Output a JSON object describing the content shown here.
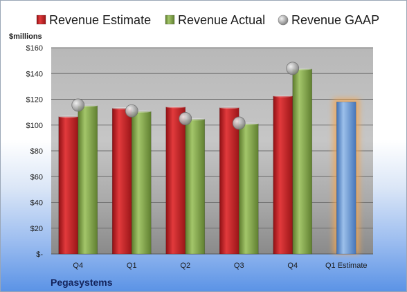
{
  "chart_data": {
    "type": "bar",
    "title": "",
    "company": "Pegasystems",
    "ylabel": "$millions",
    "ylim": [
      0,
      160
    ],
    "y_ticks": [
      0,
      20,
      40,
      60,
      80,
      100,
      120,
      140,
      160
    ],
    "y_tick_labels": [
      "$-",
      "$20",
      "$40",
      "$60",
      "$80",
      "$100",
      "$120",
      "$140",
      "$160"
    ],
    "grid": true,
    "legend_position": "top",
    "categories": [
      "Q4",
      "Q1",
      "Q2",
      "Q3",
      "Q4",
      "Q1 Estimate"
    ],
    "series": [
      {
        "name": "Revenue Estimate",
        "type": "bar",
        "color": "#c8262a",
        "values": [
          106.5,
          113,
          114,
          113.5,
          122.5,
          null
        ]
      },
      {
        "name": "Revenue Actual",
        "type": "bar",
        "color": "#86a84a",
        "values": [
          115,
          110.5,
          104.5,
          101,
          143.5,
          null
        ]
      },
      {
        "name": "Revenue GAAP",
        "type": "scatter",
        "color": "#a8a8a8",
        "values": [
          115.5,
          111,
          105,
          101.5,
          144,
          null
        ]
      }
    ],
    "estimate_bar": {
      "category": "Q1 Estimate",
      "value": 118,
      "color": "#6c9bd2",
      "glow_color": "#f5a650"
    }
  }
}
